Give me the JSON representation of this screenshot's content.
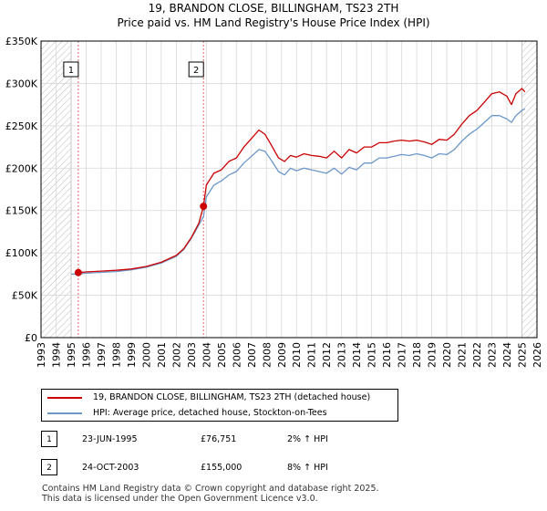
{
  "title_line1": "19, BRANDON CLOSE, BILLINGHAM, TS23 2TH",
  "title_line2": "Price paid vs. HM Land Registry's House Price Index (HPI)",
  "colors": {
    "property": "#cc0000",
    "hpi": "#6b97c9",
    "vline": "#e06666",
    "hatch": "#bbbbbb",
    "grid": "#d8d8d8"
  },
  "chart_data": {
    "type": "line",
    "title": "Price paid vs. HM Land Registry's House Price Index (HPI)",
    "xlabel": "",
    "ylabel": "",
    "xlim": [
      1993,
      2026
    ],
    "ylim": [
      0,
      350000
    ],
    "grid": true,
    "x_ticks": [
      1993,
      1994,
      1995,
      1996,
      1997,
      1998,
      1999,
      2000,
      2001,
      2002,
      2003,
      2004,
      2005,
      2006,
      2007,
      2008,
      2009,
      2010,
      2011,
      2012,
      2013,
      2014,
      2015,
      2016,
      2017,
      2018,
      2019,
      2020,
      2021,
      2022,
      2023,
      2024,
      2025,
      2026
    ],
    "y_ticks": [
      {
        "value": 0,
        "label": "£0"
      },
      {
        "value": 50000,
        "label": "£50K"
      },
      {
        "value": 100000,
        "label": "£100K"
      },
      {
        "value": 150000,
        "label": "£150K"
      },
      {
        "value": 200000,
        "label": "£200K"
      },
      {
        "value": 250000,
        "label": "£250K"
      },
      {
        "value": 300000,
        "label": "£300K"
      },
      {
        "value": 350000,
        "label": "£350K"
      }
    ],
    "hatched_ranges": [
      [
        1993,
        1995.0
      ],
      [
        2025.0,
        2026
      ]
    ],
    "markers": [
      {
        "id": "1",
        "x": 1995.48,
        "y": 76751
      },
      {
        "id": "2",
        "x": 2003.81,
        "y": 155000
      }
    ],
    "series": [
      {
        "name": "19, BRANDON CLOSE, BILLINGHAM, TS23 2TH (detached house)",
        "x": [
          1995.48,
          1996,
          1997,
          1998,
          1999,
          2000,
          2001,
          2002,
          2002.5,
          2003,
          2003.5,
          2003.81,
          2004,
          2004.5,
          2005,
          2005.5,
          2006,
          2006.5,
          2007,
          2007.5,
          2007.9,
          2008.3,
          2008.8,
          2009.2,
          2009.6,
          2010,
          2010.5,
          2011,
          2011.5,
          2012,
          2012.5,
          2013,
          2013.5,
          2014,
          2014.5,
          2015,
          2015.5,
          2016,
          2016.5,
          2017,
          2017.5,
          2018,
          2018.5,
          2019,
          2019.5,
          2020,
          2020.5,
          2021,
          2021.5,
          2022,
          2022.5,
          2023,
          2023.5,
          2024,
          2024.3,
          2024.6,
          2025,
          2025.2
        ],
        "values": [
          76751,
          77500,
          78500,
          79500,
          81000,
          84000,
          89000,
          97000,
          105000,
          118000,
          135000,
          155000,
          180000,
          194000,
          198000,
          208000,
          212000,
          225000,
          235000,
          245000,
          240000,
          228000,
          212000,
          208000,
          215000,
          213000,
          217000,
          215000,
          214000,
          212000,
          220000,
          212000,
          222000,
          218000,
          225000,
          225000,
          230000,
          230000,
          232000,
          233000,
          232000,
          233000,
          231000,
          228000,
          234000,
          233000,
          240000,
          252000,
          262000,
          268000,
          278000,
          288000,
          290000,
          285000,
          275000,
          288000,
          294000,
          290000
        ]
      },
      {
        "name": "HPI: Average price, detached house, Stockton-on-Tees",
        "x": [
          1995.0,
          1995.48,
          1996,
          1997,
          1998,
          1999,
          2000,
          2001,
          2002,
          2002.5,
          2003,
          2003.5,
          2003.81,
          2004,
          2004.5,
          2005,
          2005.5,
          2006,
          2006.5,
          2007,
          2007.5,
          2007.9,
          2008.3,
          2008.8,
          2009.2,
          2009.6,
          2010,
          2010.5,
          2011,
          2011.5,
          2012,
          2012.5,
          2013,
          2013.5,
          2014,
          2014.5,
          2015,
          2015.5,
          2016,
          2016.5,
          2017,
          2017.5,
          2018,
          2018.5,
          2019,
          2019.5,
          2020,
          2020.5,
          2021,
          2021.5,
          2022,
          2022.5,
          2023,
          2023.5,
          2024,
          2024.3,
          2024.6,
          2025,
          2025.2
        ],
        "values": [
          75000,
          75200,
          76000,
          77000,
          78000,
          80000,
          83000,
          88000,
          96000,
          104000,
          117000,
          133000,
          143000,
          166000,
          180000,
          185000,
          192000,
          196000,
          206000,
          214000,
          222000,
          220000,
          210000,
          196000,
          192000,
          200000,
          197000,
          200000,
          198000,
          196000,
          194000,
          200000,
          193000,
          201000,
          198000,
          206000,
          206000,
          212000,
          212000,
          214000,
          216000,
          215000,
          217000,
          215000,
          212000,
          217000,
          216000,
          222000,
          232000,
          240000,
          246000,
          254000,
          262000,
          262000,
          258000,
          254000,
          262000,
          268000,
          270000
        ]
      }
    ]
  },
  "legend": {
    "property_label": "19, BRANDON CLOSE, BILLINGHAM, TS23 2TH (detached house)",
    "hpi_label": "HPI: Average price, detached house, Stockton-on-Tees"
  },
  "transactions": [
    {
      "id": "1",
      "date": "23-JUN-1995",
      "price": "£76,751",
      "hpi": "2% ↑ HPI"
    },
    {
      "id": "2",
      "date": "24-OCT-2003",
      "price": "£155,000",
      "hpi": "8% ↑ HPI"
    }
  ],
  "footer": {
    "line1": "Contains HM Land Registry data © Crown copyright and database right 2025.",
    "line2": "This data is licensed under the Open Government Licence v3.0."
  }
}
